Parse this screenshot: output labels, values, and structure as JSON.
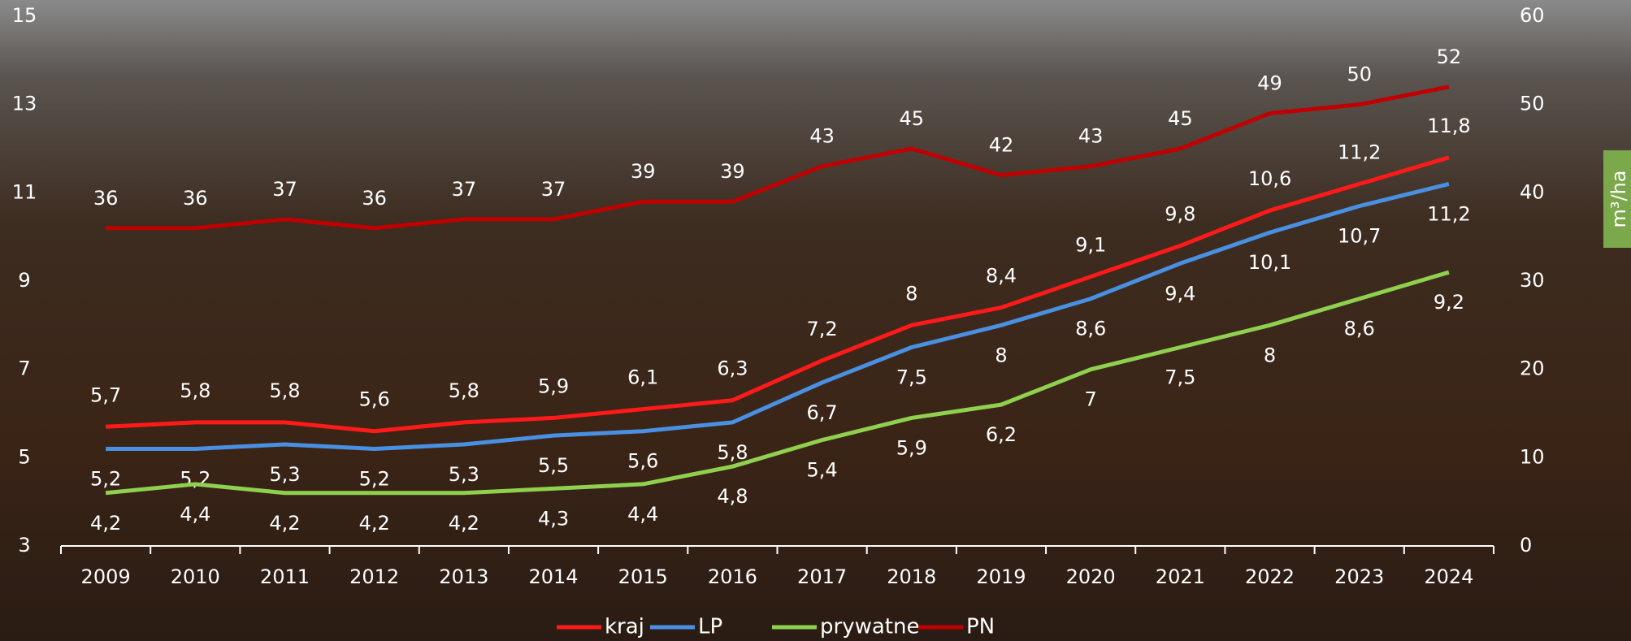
{
  "chart_data": {
    "type": "line",
    "categories": [
      "2009",
      "2010",
      "2011",
      "2012",
      "2013",
      "2014",
      "2015",
      "2016",
      "2017",
      "2018",
      "2019",
      "2020",
      "2021",
      "2022",
      "2023",
      "2024"
    ],
    "series": [
      {
        "name": "kraj",
        "color": "#ff1a1a",
        "values": [
          5.7,
          5.8,
          5.8,
          5.6,
          5.8,
          5.9,
          6.1,
          6.3,
          7.2,
          8,
          8.4,
          9.1,
          9.8,
          10.6,
          11.2,
          11.8
        ],
        "value_labels": [
          "5,7",
          "5,8",
          "5,8",
          "5,6",
          "5,8",
          "5,9",
          "6,1",
          "6,3",
          "7,2",
          "8",
          "8,4",
          "9,1",
          "9,8",
          "10,6",
          "11,2",
          "11,8"
        ]
      },
      {
        "name": "LP",
        "color": "#4a90e2",
        "values": [
          5.2,
          5.2,
          5.3,
          5.2,
          5.3,
          5.5,
          5.6,
          5.8,
          6.7,
          7.5,
          8,
          8.6,
          9.4,
          10.1,
          10.7,
          11.2
        ],
        "value_labels": [
          "5,2",
          "5,2",
          "5,3",
          "5,2",
          "5,3",
          "5,5",
          "5,6",
          "5,8",
          "6,7",
          "7,5",
          "8",
          "8,6",
          "9,4",
          "10,1",
          "10,7",
          "11,2"
        ]
      },
      {
        "name": "prywatne",
        "color": "#8fd14f",
        "values": [
          4.2,
          4.4,
          4.2,
          4.2,
          4.2,
          4.3,
          4.4,
          4.8,
          5.4,
          5.9,
          6.2,
          7,
          7.5,
          8,
          8.6,
          9.2
        ],
        "value_labels": [
          "4,2",
          "4,4",
          "4,2",
          "4,2",
          "4,2",
          "4,3",
          "4,4",
          "4,8",
          "5,4",
          "5,9",
          "6,2",
          "7",
          "7,5",
          "8",
          "8,6",
          "9,2"
        ]
      },
      {
        "name": "PN",
        "color": "#c00000",
        "axis": "y2",
        "values": [
          36,
          36,
          37,
          36,
          37,
          37,
          39,
          39,
          43,
          45,
          42,
          43,
          45,
          49,
          50,
          52
        ]
      }
    ],
    "ylim": [
      3,
      15
    ],
    "yticks": [
      3,
      5,
      7,
      9,
      11,
      13,
      15
    ],
    "y2lim": [
      0,
      60
    ],
    "y2ticks": [
      0,
      10,
      20,
      30,
      40,
      50,
      60
    ],
    "y2label": "m³/ha",
    "legend": "bottom",
    "grid": false
  }
}
